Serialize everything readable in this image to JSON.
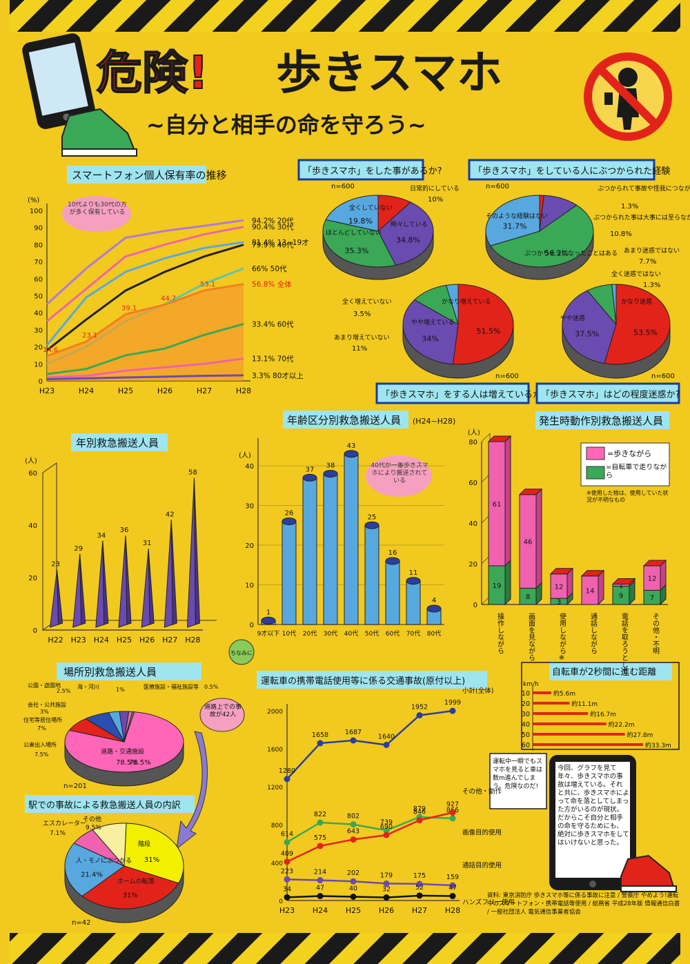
{
  "poster": {
    "title_a": "危険!",
    "title_b": "歩きスマホ",
    "subtitle": "~自分と相手の命を守ろう~",
    "colors": {
      "background": "#f2c91e",
      "stripe": "#1a1a1a",
      "red": "#e2231a",
      "pink": "#f062ae",
      "blue": "#58a8e0",
      "green": "#3aa857",
      "purple": "#6a4bb0",
      "orange": "#f08020",
      "cyan": "#9ee5f0",
      "legend_pink": "#ff66b8"
    },
    "icons": [
      "smartphone-icon",
      "sneaker-icon",
      "no-walking-phone-icon",
      "cat-icon"
    ]
  },
  "labels": {
    "ownership_title": "スマートフォン個人保有率の推移",
    "ownership_note": "10代よりも30代の方が多く保有している",
    "q1_title": "「歩きスマホ」をした事があるか?",
    "q2_title": "「歩きスマホ」をしている人にぶつかられた経験",
    "q3_title": "「歩きスマホ」をする人は増えているか?",
    "q4_title": "「歩きスマホ」はどの程度迷惑か?",
    "yearly_title": "年別救急搬送人員",
    "age_title": "年齢区分別救急搬送人員",
    "age_period": "(H24~H28)",
    "age_note": "40代が一番歩きスマホにより搬送されている",
    "motion_title": "発生時動作別救急搬送人員",
    "motion_legend_walk": "=歩きながら",
    "motion_legend_bike": "=自転車で走りながら",
    "motion_note": "※使用した物は、使用していた状況が不明なもの",
    "place_title": "場所別救急搬送人員",
    "place_note": "道路上での事故が42人",
    "station_title": "駅での事故による救急搬送人員の内訳",
    "accident_title": "運転車の携帯電話使用等に係る交通事故(原付以上)",
    "distance_title": "自転車が2秒間に進む距離",
    "distance_unit": "km/h",
    "distance_note": "運転中一瞬でもスマホを見ると車は数m進んでしまう。危険なのだ!",
    "phone_message": "今回、グラフを見て年々、歩きスマホの事故は増えている。それと共に、歩きスマホによって命を落としてしまった方がいるのが現状。だからこそ自分と相手の命を守るためにも、絶対に歩きスマホをしてはいけないと思った。",
    "credits": "資料: 東京消防庁 歩きスマホ等に係る事故に注意 / 警察庁 やめよう!運転中のスマートフォン・携帯電話等使用 / 総務省 平成28年版 情報通信白書 / 一般社団法人 電気通信事業者協会",
    "cat_text": "ちなみに"
  },
  "chart_data": [
    {
      "id": "ownership",
      "type": "line",
      "title": "スマートフォン個人保有率の推移",
      "ylabel": "(%)",
      "x": [
        "H23",
        "H24",
        "H25",
        "H26",
        "H27",
        "H28"
      ],
      "ylim": [
        0,
        100
      ],
      "yticks": [
        0,
        10,
        20,
        30,
        40,
        50,
        60,
        70,
        80,
        90,
        100
      ],
      "series": [
        {
          "name": "20代",
          "end_label": "94.2% 20代",
          "color": "#b07ad8",
          "values": [
            45,
            66,
            84,
            88,
            91,
            94.2
          ]
        },
        {
          "name": "30代",
          "end_label": "90.4% 30代",
          "color": "#f062ae",
          "values": [
            35,
            54,
            73,
            80,
            86,
            90.4
          ]
        },
        {
          "name": "13~19才",
          "end_label": "81.4% 13~19才",
          "color": "#58a8e0",
          "values": [
            21,
            49,
            64,
            72,
            78,
            81.4
          ]
        },
        {
          "name": "40代",
          "end_label": "79.9% 40代",
          "color": "#222222",
          "values": [
            18,
            36,
            53,
            64,
            73,
            79.9
          ]
        },
        {
          "name": "50代",
          "end_label": "66% 50代",
          "color": "#5cc6b0",
          "values": [
            10,
            20,
            35,
            45,
            57,
            66
          ]
        },
        {
          "name": "全体",
          "end_label": "56.8% 全体",
          "color": "#f08020",
          "values": [
            14.6,
            23.1,
            39.1,
            44.7,
            53.1,
            56.8
          ],
          "point_labels": [
            "14.6",
            "23.1",
            "39.1",
            "44.7",
            "53.1",
            ""
          ]
        },
        {
          "name": "60代",
          "end_label": "33.4% 60代",
          "color": "#3aa857",
          "values": [
            4,
            7,
            15,
            19,
            27,
            33.4
          ]
        },
        {
          "name": "70代",
          "end_label": "13.1% 70代",
          "color": "#f062ae",
          "values": [
            2,
            3,
            6,
            8,
            10,
            13.1
          ]
        },
        {
          "name": "80才以上",
          "end_label": "3.3% 80才以上",
          "color": "#6a4bb0",
          "values": [
            1,
            1.5,
            2,
            2.5,
            3,
            3.3
          ]
        }
      ]
    },
    {
      "id": "q1",
      "type": "pie",
      "title": "「歩きスマホ」をした事があるか?",
      "n_label": "n=600",
      "slices": [
        {
          "label": "日常的にしている",
          "value": 10,
          "value_label": "10%",
          "color": "#e2231a"
        },
        {
          "label": "時々している",
          "value": 34.8,
          "value_label": "34.8%",
          "color": "#6a4bb0"
        },
        {
          "label": "ほとんどしていない",
          "value": 35.3,
          "value_label": "35.3%",
          "color": "#3aa857"
        },
        {
          "label": "全くしていない",
          "value": 19.8,
          "value_label": "19.8%",
          "color": "#58a8e0"
        }
      ]
    },
    {
      "id": "q2",
      "type": "pie",
      "title": "「歩きスマホ」をしている人にぶつかられた経験",
      "n_label": "n=600",
      "slices": [
        {
          "label": "ぶつかられて事故や怪我につながった",
          "value": 1.3,
          "value_label": "1.3%",
          "color": "#e2231a"
        },
        {
          "label": "ぶつかられた事は大事には至らなかった",
          "value": 10.8,
          "value_label": "10.8%",
          "color": "#6a4bb0"
        },
        {
          "label": "ぶつかりそうになったことはある",
          "value": 56.2,
          "value_label": "56.2%",
          "color": "#3aa857"
        },
        {
          "label": "そのような経験はない",
          "value": 31.7,
          "value_label": "31.7%",
          "color": "#58a8e0"
        }
      ]
    },
    {
      "id": "q3",
      "type": "pie",
      "title": "「歩きスマホ」をする人は増えているか?",
      "n_label": "n=600",
      "slices": [
        {
          "label": "かなり増えている",
          "value": 51.5,
          "value_label": "51.5%",
          "color": "#e2231a"
        },
        {
          "label": "やや増えている",
          "value": 34,
          "value_label": "34%",
          "color": "#6a4bb0"
        },
        {
          "label": "あまり増えていない",
          "value": 11,
          "value_label": "11%",
          "color": "#3aa857"
        },
        {
          "label": "全く増えていない",
          "value": 3.5,
          "value_label": "3.5%",
          "color": "#58a8e0"
        }
      ]
    },
    {
      "id": "q4",
      "type": "pie",
      "title": "「歩きスマホ」はどの程度迷惑か?",
      "n_label": "n=600",
      "slices": [
        {
          "label": "かなり迷惑",
          "value": 53.5,
          "value_label": "53.5%",
          "color": "#e2231a"
        },
        {
          "label": "やや迷惑",
          "value": 37.5,
          "value_label": "37.5%",
          "color": "#6a4bb0"
        },
        {
          "label": "あまり迷惑ではない",
          "value": 7.7,
          "value_label": "7.7%",
          "color": "#3aa857"
        },
        {
          "label": "全く迷惑ではない",
          "value": 1.3,
          "value_label": "1.3%",
          "color": "#58a8e0"
        }
      ]
    },
    {
      "id": "yearly",
      "type": "bar",
      "title": "年別救急搬送人員",
      "ylabel": "(人)",
      "categories": [
        "H22",
        "H23",
        "H24",
        "H25",
        "H26",
        "H27",
        "H28"
      ],
      "values": [
        23,
        29,
        34,
        36,
        31,
        42,
        58
      ],
      "ylim": [
        0,
        60
      ],
      "yticks": [
        0,
        20,
        40,
        60
      ]
    },
    {
      "id": "age",
      "type": "bar",
      "title": "年齢区分別救急搬送人員",
      "ylabel": "(人)",
      "categories": [
        "9才以下",
        "10代",
        "20代",
        "30代",
        "40代",
        "50代",
        "60代",
        "70代",
        "80代"
      ],
      "values": [
        1,
        26,
        37,
        38,
        43,
        25,
        16,
        11,
        4
      ],
      "ylim": [
        0,
        40
      ],
      "yticks": [
        0,
        10,
        20,
        30,
        40
      ]
    },
    {
      "id": "motion",
      "type": "bar",
      "title": "発生時動作別救急搬送人員",
      "ylabel": "(人)",
      "categories": [
        "操作しながら",
        "画面を見ながら",
        "使用しながら※",
        "通話しながら",
        "電話を取ろうとして",
        "その他・不明"
      ],
      "series": [
        {
          "name": "歩きながら",
          "color": "#f062ae",
          "values": [
            61,
            46,
            12,
            14,
            1,
            12
          ]
        },
        {
          "name": "自転車で走りながら",
          "color": "#3aa857",
          "values": [
            19,
            8,
            3,
            0,
            9,
            7
          ]
        }
      ],
      "ylim": [
        0,
        80
      ],
      "yticks": [
        0,
        20,
        40,
        60,
        80
      ]
    },
    {
      "id": "place",
      "type": "pie",
      "title": "場所別救急搬送人員",
      "n_label": "n=201",
      "slices": [
        {
          "label": "医療施設・福祉施設等",
          "value": 0.5,
          "value_label": "0.5%",
          "color": "#3aa857"
        },
        {
          "label": "道路・交通施設",
          "value": 78.5,
          "value_label": "78.5%",
          "color": "#ff66b8"
        },
        {
          "label": "公衆出入場所",
          "value": 7.5,
          "value_label": "7.5%",
          "color": "#e2231a"
        },
        {
          "label": "住宅等居住場所",
          "value": 7,
          "value_label": "7%",
          "color": "#2a4fb0"
        },
        {
          "label": "会社・公共施設",
          "value": 3,
          "value_label": "3%",
          "color": "#58a8e0"
        },
        {
          "label": "公園・遊園地",
          "value": 2.5,
          "value_label": "2.5%",
          "color": "#6a4bb0"
        },
        {
          "label": "海・河川",
          "value": 1,
          "value_label": "1%",
          "color": "#f062ae"
        }
      ]
    },
    {
      "id": "station",
      "type": "pie",
      "title": "駅での事故による救急搬送人員の内訳",
      "n_label": "n=42",
      "slices": [
        {
          "label": "階段",
          "value": 31,
          "value_label": "31%",
          "color": "#f2f000"
        },
        {
          "label": "ホームの転落",
          "value": 31,
          "value_label": "31%",
          "color": "#e2231a"
        },
        {
          "label": "人・モノにぶつかる",
          "value": 21.4,
          "value_label": "21.4%",
          "color": "#58a8e0"
        },
        {
          "label": "エスカレーター",
          "value": 7.1,
          "value_label": "7.1%",
          "color": "#f062ae"
        },
        {
          "label": "その他",
          "value": 9.5,
          "value_label": "9.5%",
          "color": "#f8f0a0"
        }
      ]
    },
    {
      "id": "accident",
      "type": "line",
      "title": "運転車の携帯電話使用等に係る交通事故(原付以上)",
      "x": [
        "H23",
        "H24",
        "H25",
        "H26",
        "H27",
        "H28"
      ],
      "ylim": [
        0,
        2000
      ],
      "yticks": [
        0,
        400,
        800,
        1200,
        1600,
        2000
      ],
      "series": [
        {
          "name": "小計(全体)",
          "color": "#2a3fa0",
          "values": [
            1280,
            1658,
            1687,
            1640,
            1952,
            1999
          ]
        },
        {
          "name": "その他・動作",
          "color": "#3aa857",
          "values": [
            614,
            822,
            802,
            739,
            879,
            866
          ]
        },
        {
          "name": "画像目的使用",
          "color": "#e2231a",
          "values": [
            409,
            575,
            643,
            690,
            846,
            927
          ]
        },
        {
          "name": "通話目的使用",
          "color": "#6a4bb0",
          "values": [
            223,
            214,
            202,
            179,
            175,
            159
          ]
        },
        {
          "name": "ハンズフリー使用",
          "color": "#111111",
          "values": [
            34,
            47,
            40,
            32,
            52,
            47
          ]
        }
      ]
    },
    {
      "id": "distance",
      "type": "bar",
      "title": "自転車が2秒間に進む距離",
      "categories": [
        "10",
        "20",
        "30",
        "40",
        "50",
        "60"
      ],
      "values": [
        5.6,
        11.1,
        16.7,
        22.2,
        27.8,
        33.3
      ],
      "value_labels": [
        "約5.6m",
        "約11.1m",
        "約16.7m",
        "約22.2m",
        "約27.8m",
        "約33.3m"
      ]
    }
  ]
}
